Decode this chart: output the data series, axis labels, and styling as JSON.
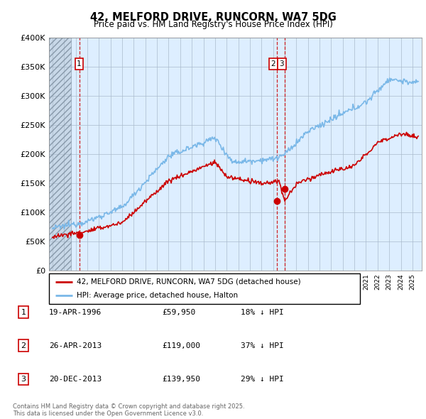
{
  "title": "42, MELFORD DRIVE, RUNCORN, WA7 5DG",
  "subtitle": "Price paid vs. HM Land Registry's House Price Index (HPI)",
  "ylim": [
    0,
    400000
  ],
  "yticks": [
    0,
    50000,
    100000,
    150000,
    200000,
    250000,
    300000,
    350000,
    400000
  ],
  "ytick_labels": [
    "£0",
    "£50K",
    "£100K",
    "£150K",
    "£200K",
    "£250K",
    "£300K",
    "£350K",
    "£400K"
  ],
  "xlim_start": 1993.7,
  "xlim_end": 2025.8,
  "hpi_color": "#7ab8e8",
  "price_color": "#cc0000",
  "dashed_line_color": "#cc0000",
  "chart_bg_color": "#ddeeff",
  "background_color": "#ffffff",
  "grid_color": "#aabbcc",
  "legend_label_red": "42, MELFORD DRIVE, RUNCORN, WA7 5DG (detached house)",
  "legend_label_blue": "HPI: Average price, detached house, Halton",
  "purchases": [
    {
      "num": 1,
      "year": 1996.3,
      "price": 59950
    },
    {
      "num": 2,
      "year": 2013.32,
      "price": 119000
    },
    {
      "num": 3,
      "year": 2013.97,
      "price": 139950
    }
  ],
  "table_rows": [
    [
      "1",
      "19-APR-1996",
      "£59,950",
      "18% ↓ HPI"
    ],
    [
      "2",
      "26-APR-2013",
      "£119,000",
      "37% ↓ HPI"
    ],
    [
      "3",
      "20-DEC-2013",
      "£139,950",
      "29% ↓ HPI"
    ]
  ],
  "footer": "Contains HM Land Registry data © Crown copyright and database right 2025.\nThis data is licensed under the Open Government Licence v3.0.",
  "hatch_end_year": 1995.6
}
